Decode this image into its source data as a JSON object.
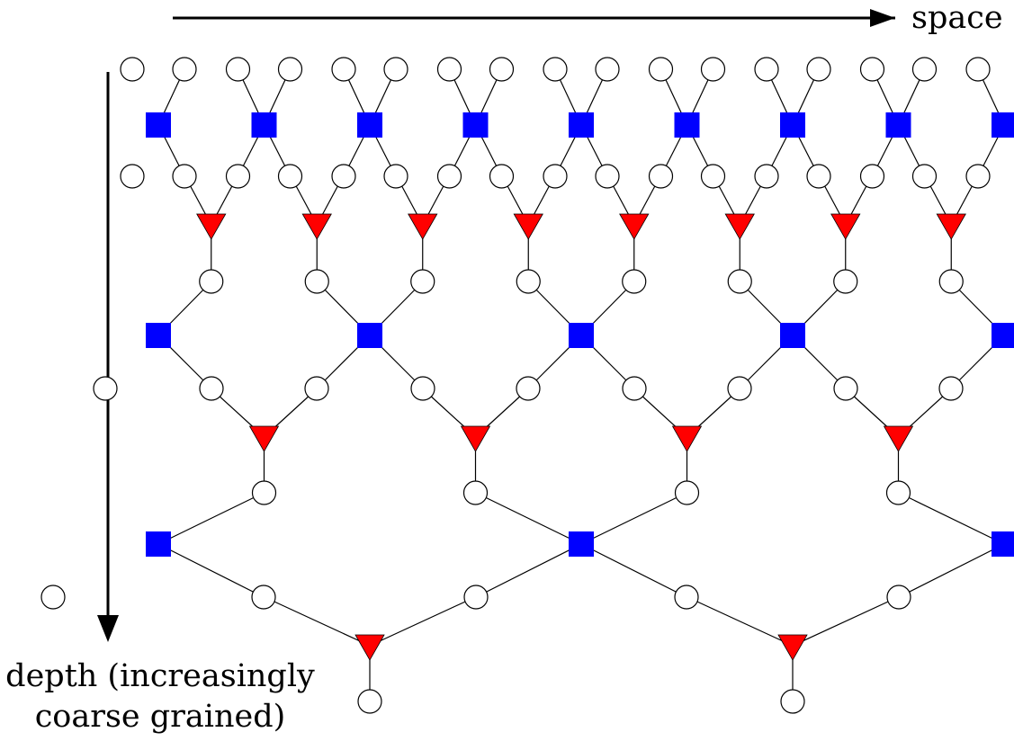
{
  "labels": {
    "horizontal_axis": "space",
    "vertical_axis_line1": "depth (increasingly",
    "vertical_axis_line2": "coarse grained)"
  },
  "legend_colors": {
    "disentangler": "#0000ff",
    "isometry": "#ff0000",
    "site": "#ffffff",
    "edge": "#000000"
  },
  "network": {
    "type": "MERA",
    "layers": 3,
    "sites_in_top_row": 16
  }
}
